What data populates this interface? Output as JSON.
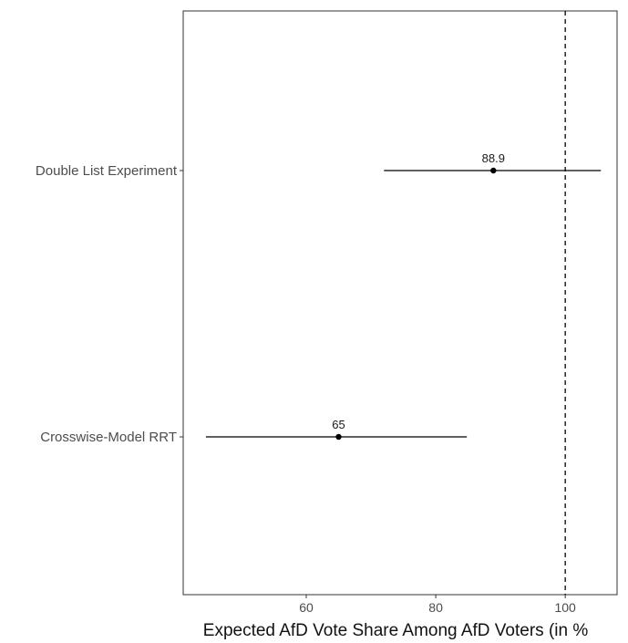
{
  "chart_data": {
    "type": "dot-and-whisker",
    "categories": [
      "Double List Experiment",
      "Crosswise-Model RRT"
    ],
    "series": [
      {
        "category": "Double List Experiment",
        "estimate": 88.9,
        "lower": 72.0,
        "upper": 105.5,
        "label": "88.9"
      },
      {
        "category": "Crosswise-Model RRT",
        "estimate": 65,
        "lower": 44.5,
        "upper": 84.8,
        "label": "65"
      }
    ],
    "xlabel": "Expected AfD Vote Share Among AfD Voters (in %",
    "xticks": [
      60,
      80,
      100
    ],
    "xlim": [
      41,
      108
    ],
    "reference_line": 100,
    "grid": false
  },
  "colors": {
    "line": "#000000",
    "panel_border": "#333333",
    "label": "#4d4d4d",
    "reference": "#000000"
  }
}
